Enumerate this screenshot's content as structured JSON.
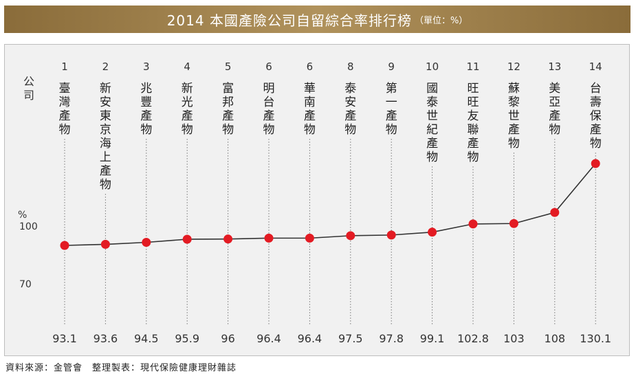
{
  "title": {
    "main": "2014 本國產險公司自留綜合率排行榜",
    "unit": "（單位：%）"
  },
  "source": "資料來源：金管會　整理製表：現代保險健康理財雜誌",
  "chart_data": {
    "type": "line",
    "row_header": "公司",
    "y_unit": "%",
    "y_ticks": [
      100,
      70
    ],
    "ranks": [
      "1",
      "2",
      "3",
      "4",
      "5",
      "6",
      "6",
      "8",
      "9",
      "10",
      "11",
      "12",
      "13",
      "14"
    ],
    "categories": [
      "臺灣產物",
      "新安東京海上產物",
      "兆豐產物",
      "新光產物",
      "富邦產物",
      "明台產物",
      "華南產物",
      "泰安產物",
      "第一產物",
      "國泰世紀產物",
      "旺旺友聯產物",
      "蘇黎世產物",
      "美亞產物",
      "台壽保產物"
    ],
    "values": [
      93.1,
      93.6,
      94.5,
      95.9,
      96,
      96.4,
      96.4,
      97.5,
      97.8,
      99.1,
      102.8,
      103,
      108,
      130.1
    ],
    "value_labels": [
      "93.1",
      "93.6",
      "94.5",
      "95.9",
      "96",
      "96.4",
      "96.4",
      "97.5",
      "97.8",
      "99.1",
      "102.8",
      "103",
      "108",
      "130.1"
    ],
    "colors": {
      "marker": "#e31b23",
      "line": "#333333",
      "accent": "#a0824e"
    }
  }
}
